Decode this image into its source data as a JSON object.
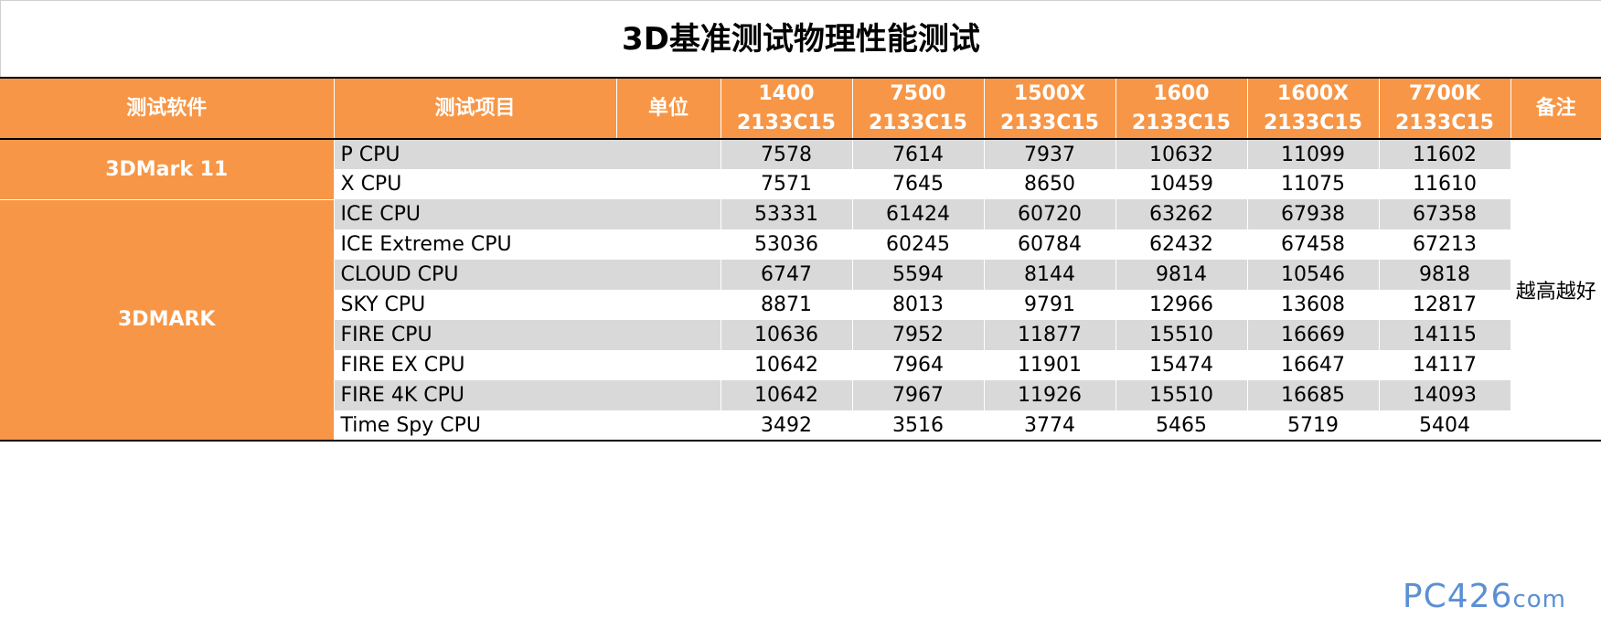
{
  "title": "3D基准测试物理性能测试",
  "headers": {
    "software": "测试软件",
    "item": "测试项目",
    "unit": "单位",
    "cpus": [
      {
        "model": "1400",
        "memory": "2133C15"
      },
      {
        "model": "7500",
        "memory": "2133C15"
      },
      {
        "model": "1500X",
        "memory": "2133C15"
      },
      {
        "model": "1600",
        "memory": "2133C15"
      },
      {
        "model": "1600X",
        "memory": "2133C15"
      },
      {
        "model": "7700K",
        "memory": "2133C15"
      }
    ],
    "note": "备注"
  },
  "groups": [
    {
      "software": "3DMark 11"
    },
    {
      "software": "3DMARK"
    }
  ],
  "rows": [
    {
      "item": "P CPU",
      "unit": "",
      "values": [
        "7578",
        "7614",
        "7937",
        "10632",
        "11099",
        "11602"
      ]
    },
    {
      "item": "X CPU",
      "unit": "",
      "values": [
        "7571",
        "7645",
        "8650",
        "10459",
        "11075",
        "11610"
      ]
    },
    {
      "item": "ICE CPU",
      "unit": "",
      "values": [
        "53331",
        "61424",
        "60720",
        "63262",
        "67938",
        "67358"
      ]
    },
    {
      "item": "ICE Extreme CPU",
      "unit": "",
      "values": [
        "53036",
        "60245",
        "60784",
        "62432",
        "67458",
        "67213"
      ]
    },
    {
      "item": "CLOUD CPU",
      "unit": "",
      "values": [
        "6747",
        "5594",
        "8144",
        "9814",
        "10546",
        "9818"
      ]
    },
    {
      "item": "SKY CPU",
      "unit": "",
      "values": [
        "8871",
        "8013",
        "9791",
        "12966",
        "13608",
        "12817"
      ]
    },
    {
      "item": "FIRE CPU",
      "unit": "",
      "values": [
        "10636",
        "7952",
        "11877",
        "15510",
        "16669",
        "14115"
      ]
    },
    {
      "item": "FIRE EX CPU",
      "unit": "",
      "values": [
        "10642",
        "7964",
        "11901",
        "15474",
        "16647",
        "14117"
      ]
    },
    {
      "item": "FIRE 4K CPU",
      "unit": "",
      "values": [
        "10642",
        "7967",
        "11926",
        "15510",
        "16685",
        "14093"
      ]
    },
    {
      "item": "Time Spy CPU",
      "unit": "",
      "values": [
        "3492",
        "3516",
        "3774",
        "5465",
        "5719",
        "5404"
      ]
    }
  ],
  "note_text": "越高越好",
  "watermark": {
    "main": "PC426",
    "suffix": "com"
  }
}
